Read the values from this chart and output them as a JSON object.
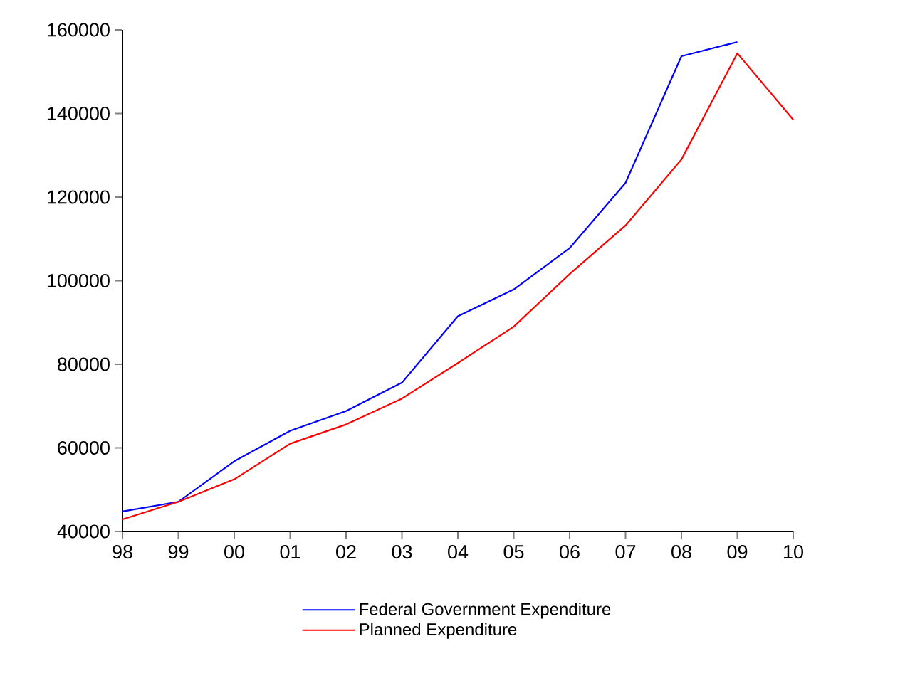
{
  "chart_data": {
    "type": "line",
    "categories": [
      "98",
      "99",
      "00",
      "01",
      "02",
      "03",
      "04",
      "05",
      "06",
      "07",
      "08",
      "09",
      "10"
    ],
    "series": [
      {
        "name": "Federal Government Expenditure",
        "color": "#0000ff",
        "values": [
          44800,
          47100,
          56800,
          64100,
          68800,
          75600,
          91500,
          97900,
          107800,
          123400,
          153700,
          157100,
          null
        ]
      },
      {
        "name": "Planned Expenditure",
        "color": "#ff0000",
        "values": [
          42900,
          47100,
          52500,
          61000,
          65600,
          71800,
          80300,
          89000,
          101600,
          113200,
          129000,
          154400,
          138500
        ]
      }
    ],
    "ylim": [
      40000,
      160000
    ],
    "yticks": [
      40000,
      60000,
      80000,
      100000,
      120000,
      140000,
      160000
    ],
    "grid": false,
    "legend": "bottom",
    "marker": "none",
    "line_style": "solid"
  }
}
